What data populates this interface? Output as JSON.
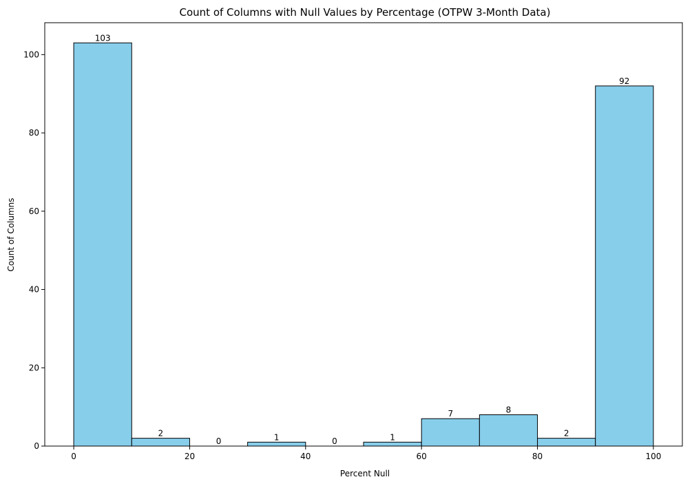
{
  "chart_data": {
    "type": "bar",
    "title": "Count of Columns with Null Values by Percentage (OTPW 3-Month Data)",
    "xlabel": "Percent Null",
    "ylabel": "Count of Columns",
    "bins": [
      {
        "start": 0,
        "end": 10,
        "value": 103
      },
      {
        "start": 10,
        "end": 20,
        "value": 2
      },
      {
        "start": 20,
        "end": 30,
        "value": 0
      },
      {
        "start": 30,
        "end": 40,
        "value": 1
      },
      {
        "start": 40,
        "end": 50,
        "value": 0
      },
      {
        "start": 50,
        "end": 60,
        "value": 1
      },
      {
        "start": 60,
        "end": 70,
        "value": 7
      },
      {
        "start": 70,
        "end": 80,
        "value": 8
      },
      {
        "start": 80,
        "end": 90,
        "value": 2
      },
      {
        "start": 90,
        "end": 100,
        "value": 92
      }
    ],
    "data_labels": [
      "103",
      "2",
      "0",
      "1",
      "0",
      "1",
      "7",
      "8",
      "2",
      "92"
    ],
    "xticks": [
      0,
      20,
      40,
      60,
      80,
      100
    ],
    "xtick_labels": [
      "0",
      "20",
      "40",
      "60",
      "80",
      "100"
    ],
    "yticks": [
      0,
      20,
      40,
      60,
      80,
      100
    ],
    "ytick_labels": [
      "0",
      "20",
      "40",
      "60",
      "80",
      "100"
    ],
    "xlim": [
      -5,
      105
    ],
    "ylim": [
      0,
      108.15
    ],
    "grid": false,
    "legend": "none",
    "bar_color": "#87ceeb",
    "edge_color": "#000000"
  }
}
